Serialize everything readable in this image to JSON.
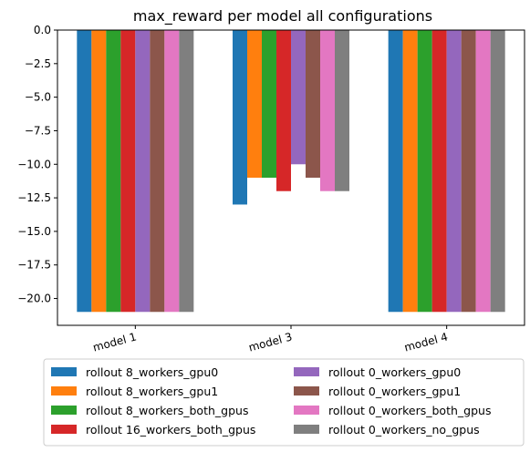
{
  "chart_data": {
    "type": "bar",
    "title": "max_reward per model all configurations",
    "xlabel": "",
    "ylabel": "",
    "categories": [
      "model 1",
      "model 3",
      "model 4"
    ],
    "ylim": [
      -22,
      0
    ],
    "yticks": [
      0.0,
      -2.5,
      -5.0,
      -7.5,
      -10.0,
      -12.5,
      -15.0,
      -17.5,
      -20.0
    ],
    "ytick_labels": [
      "0.0",
      "−2.5",
      "−5.0",
      "−7.5",
      "−10.0",
      "−12.5",
      "−15.0",
      "−17.5",
      "−20.0"
    ],
    "grid": false,
    "legend_placement": "below",
    "series": [
      {
        "name": "rollout 8_workers_gpu0",
        "color": "#1f77b4",
        "values": [
          -21,
          -13,
          -21
        ]
      },
      {
        "name": "rollout 8_workers_gpu1",
        "color": "#ff7f0e",
        "values": [
          -21,
          -11,
          -21
        ]
      },
      {
        "name": "rollout 8_workers_both_gpus",
        "color": "#2ca02c",
        "values": [
          -21,
          -11,
          -21
        ]
      },
      {
        "name": "rollout 16_workers_both_gpus",
        "color": "#d62728",
        "values": [
          -21,
          -12,
          -21
        ]
      },
      {
        "name": "rollout 0_workers_gpu0",
        "color": "#9467bd",
        "values": [
          -21,
          -10,
          -21
        ]
      },
      {
        "name": "rollout 0_workers_gpu1",
        "color": "#8c564b",
        "values": [
          -21,
          -11,
          -21
        ]
      },
      {
        "name": "rollout 0_workers_both_gpus",
        "color": "#e377c2",
        "values": [
          -21,
          -12,
          -21
        ]
      },
      {
        "name": "rollout 0_workers_no_gpus",
        "color": "#7f7f7f",
        "values": [
          -21,
          -12,
          -21
        ]
      }
    ]
  }
}
